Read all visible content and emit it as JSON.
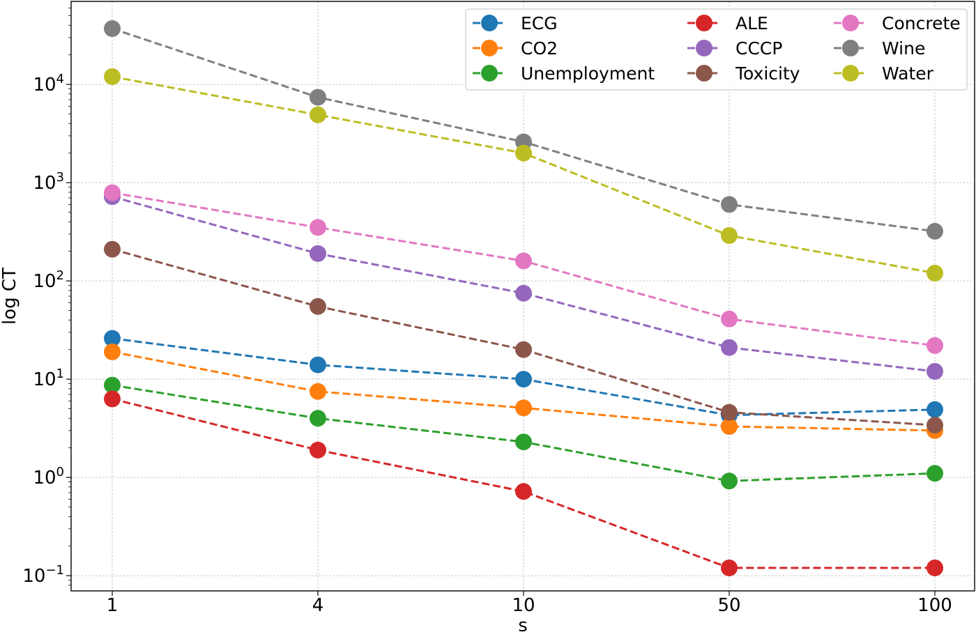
{
  "chart_data": {
    "type": "line",
    "x_axis_scale": "categorical",
    "y_axis_scale": "log",
    "xlabel": "s",
    "ylabel": "log CT",
    "categories": [
      "1",
      "4",
      "10",
      "50",
      "100"
    ],
    "y_ticks": [
      {
        "value": 0.1,
        "base": "10",
        "exp": "−1"
      },
      {
        "value": 1,
        "base": "10",
        "exp": "0"
      },
      {
        "value": 10,
        "base": "10",
        "exp": "1"
      },
      {
        "value": 100,
        "base": "10",
        "exp": "2"
      },
      {
        "value": 1000,
        "base": "10",
        "exp": "3"
      },
      {
        "value": 10000,
        "base": "10",
        "exp": "4"
      }
    ],
    "ylim": [
      0.07,
      70000
    ],
    "grid": true,
    "legend_position": "top-right",
    "legend_columns": 3,
    "line_style": "dashed",
    "marker": "circle",
    "series": [
      {
        "name": "ECG",
        "color": "#1f77b4",
        "values": [
          26,
          14,
          10,
          4.3,
          4.9
        ]
      },
      {
        "name": "CO2",
        "color": "#ff7f0e",
        "values": [
          19,
          7.5,
          5.1,
          3.3,
          3.0
        ]
      },
      {
        "name": "Unemployment",
        "color": "#2ca02c",
        "values": [
          8.7,
          4.0,
          2.3,
          0.92,
          1.1
        ]
      },
      {
        "name": "ALE",
        "color": "#d62728",
        "values": [
          6.3,
          1.9,
          0.72,
          0.12,
          0.12
        ]
      },
      {
        "name": "CCCP",
        "color": "#9467bd",
        "values": [
          720,
          190,
          75,
          21,
          12
        ]
      },
      {
        "name": "Toxicity",
        "color": "#8c564b",
        "values": [
          210,
          55,
          20,
          4.6,
          3.4
        ]
      },
      {
        "name": "Concrete",
        "color": "#e377c2",
        "values": [
          790,
          350,
          160,
          41,
          22
        ]
      },
      {
        "name": "Wine",
        "color": "#7f7f7f",
        "values": [
          37000,
          7400,
          2600,
          600,
          320
        ]
      },
      {
        "name": "Water",
        "color": "#bcbd22",
        "values": [
          12000,
          4900,
          2000,
          290,
          120
        ]
      }
    ]
  }
}
